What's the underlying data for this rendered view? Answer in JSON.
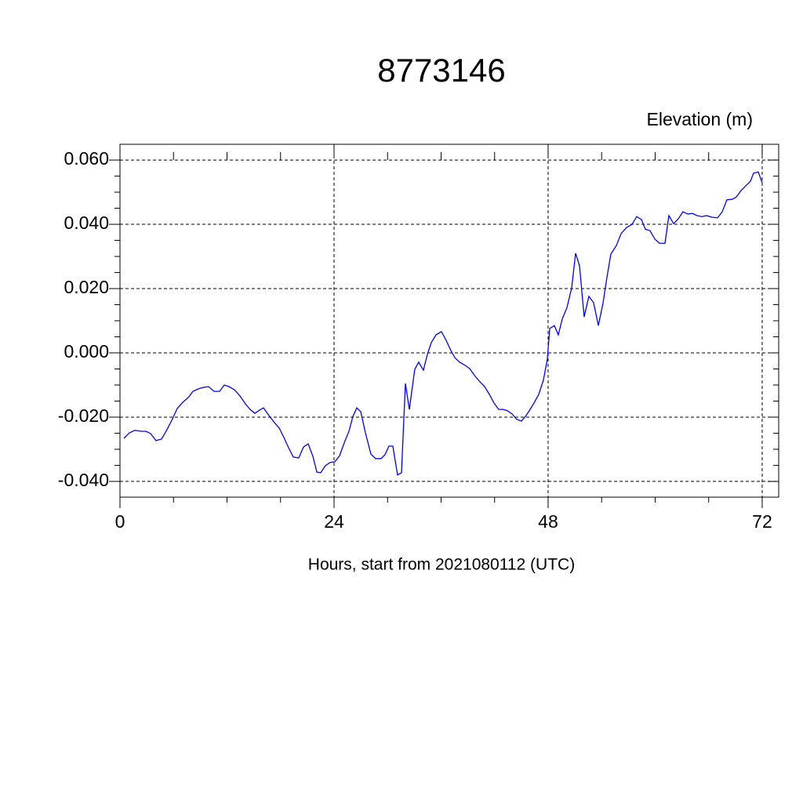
{
  "chart_data": {
    "type": "line",
    "title": "8773146",
    "subtitle": "Elevation (m)",
    "x_label": "Hours, start from 2021080112 (UTC)",
    "x": [
      0.44,
      1.05,
      1.67,
      2.37,
      2.9,
      3.43,
      4.04,
      4.66,
      5.27,
      5.89,
      6.42,
      7.03,
      7.65,
      8.18,
      8.79,
      9.41,
      9.93,
      10.55,
      11.16,
      11.69,
      12.22,
      12.84,
      13.45,
      14.07,
      14.59,
      15.12,
      15.65,
      16.09,
      16.7,
      17.32,
      17.85,
      18.37,
      18.9,
      19.43,
      20.04,
      20.57,
      21.1,
      21.63,
      22.07,
      22.5,
      23.03,
      23.56,
      24.09,
      24.62,
      25.14,
      25.67,
      26.11,
      26.55,
      26.99,
      27.52,
      28.13,
      28.66,
      29.27,
      29.71,
      30.15,
      30.59,
      31.12,
      31.56,
      32.0,
      32.44,
      33.05,
      33.49,
      34.02,
      34.46,
      34.9,
      35.43,
      36.04,
      36.57,
      37.1,
      37.54,
      38.07,
      38.59,
      39.21,
      39.82,
      40.35,
      40.88,
      41.41,
      41.93,
      42.46,
      42.99,
      43.43,
      43.96,
      44.48,
      45.01,
      45.45,
      45.89,
      46.42,
      46.95,
      47.47,
      47.91,
      48.18,
      48.7,
      49.14,
      49.58,
      50.11,
      50.64,
      51.08,
      51.52,
      52.04,
      52.57,
      53.1,
      53.63,
      54.15,
      54.59,
      55.03,
      55.65,
      56.18,
      56.79,
      57.41,
      57.93,
      58.46,
      58.9,
      59.43,
      59.96,
      60.48,
      61.1,
      61.54,
      62.07,
      62.59,
      63.12,
      63.65,
      64.18,
      64.7,
      65.23,
      65.76,
      66.37,
      66.99,
      67.52,
      68.04,
      68.66,
      69.1,
      69.63,
      70.24,
      70.68,
      71.03,
      71.56,
      72.0
    ],
    "series": [
      {
        "name": "Elevation",
        "color": "#0000ff",
        "values": [
          -0.0266,
          -0.0249,
          -0.0241,
          -0.0244,
          -0.0244,
          -0.0251,
          -0.0273,
          -0.0268,
          -0.0239,
          -0.0205,
          -0.0173,
          -0.0154,
          -0.0139,
          -0.012,
          -0.0112,
          -0.0107,
          -0.0105,
          -0.012,
          -0.012,
          -0.01,
          -0.0105,
          -0.0115,
          -0.0134,
          -0.0159,
          -0.0176,
          -0.0188,
          -0.0178,
          -0.0171,
          -0.0195,
          -0.0217,
          -0.0234,
          -0.0263,
          -0.0295,
          -0.0324,
          -0.0327,
          -0.0293,
          -0.0283,
          -0.0322,
          -0.0371,
          -0.0373,
          -0.0351,
          -0.0341,
          -0.0339,
          -0.032,
          -0.028,
          -0.0244,
          -0.0198,
          -0.0171,
          -0.0183,
          -0.0249,
          -0.0315,
          -0.0329,
          -0.0329,
          -0.0317,
          -0.029,
          -0.029,
          -0.038,
          -0.0373,
          -0.0095,
          -0.0176,
          -0.0051,
          -0.0029,
          -0.0054,
          -0.0005,
          0.0032,
          0.0056,
          0.0066,
          0.0039,
          0.0007,
          -0.0015,
          -0.0029,
          -0.0037,
          -0.0049,
          -0.0073,
          -0.009,
          -0.0105,
          -0.0129,
          -0.0156,
          -0.0176,
          -0.0176,
          -0.018,
          -0.019,
          -0.0207,
          -0.0212,
          -0.0198,
          -0.018,
          -0.0156,
          -0.0129,
          -0.0085,
          -0.002,
          0.0076,
          0.0085,
          0.0056,
          0.0105,
          0.0141,
          0.0202,
          0.031,
          0.0271,
          0.0112,
          0.0176,
          0.0156,
          0.0085,
          0.0154,
          0.0234,
          0.0307,
          0.0334,
          0.0371,
          0.039,
          0.04,
          0.0424,
          0.0415,
          0.0385,
          0.038,
          0.0354,
          0.0341,
          0.0341,
          0.0427,
          0.0402,
          0.0417,
          0.0439,
          0.0432,
          0.0434,
          0.0427,
          0.0424,
          0.0427,
          0.0422,
          0.042,
          0.0439,
          0.0476,
          0.0478,
          0.0485,
          0.0505,
          0.0522,
          0.0534,
          0.0559,
          0.0563,
          0.0529
        ]
      }
    ],
    "xlim": [
      0,
      73.85
    ],
    "ylim": [
      -0.0449,
      0.0649
    ],
    "xticks": [
      0,
      24,
      48,
      72
    ],
    "yticks": [
      {
        "value": -0.04,
        "label": "-0.040"
      },
      {
        "value": -0.02,
        "label": "-0.020"
      },
      {
        "value": 0,
        "label": "0.000"
      },
      {
        "value": 0.02,
        "label": "0.020"
      },
      {
        "value": 0.04,
        "label": "0.040"
      },
      {
        "value": 0.06,
        "label": "0.060"
      }
    ],
    "xminorticks": [
      6,
      12,
      18,
      30,
      36,
      42,
      54,
      60,
      66
    ],
    "yminorticks": [
      -0.035,
      -0.03,
      -0.025,
      -0.015,
      -0.01,
      -0.005,
      0.005,
      0.01,
      0.015,
      0.025,
      0.03,
      0.035,
      0.045,
      0.05,
      0.055
    ],
    "grid": true
  }
}
